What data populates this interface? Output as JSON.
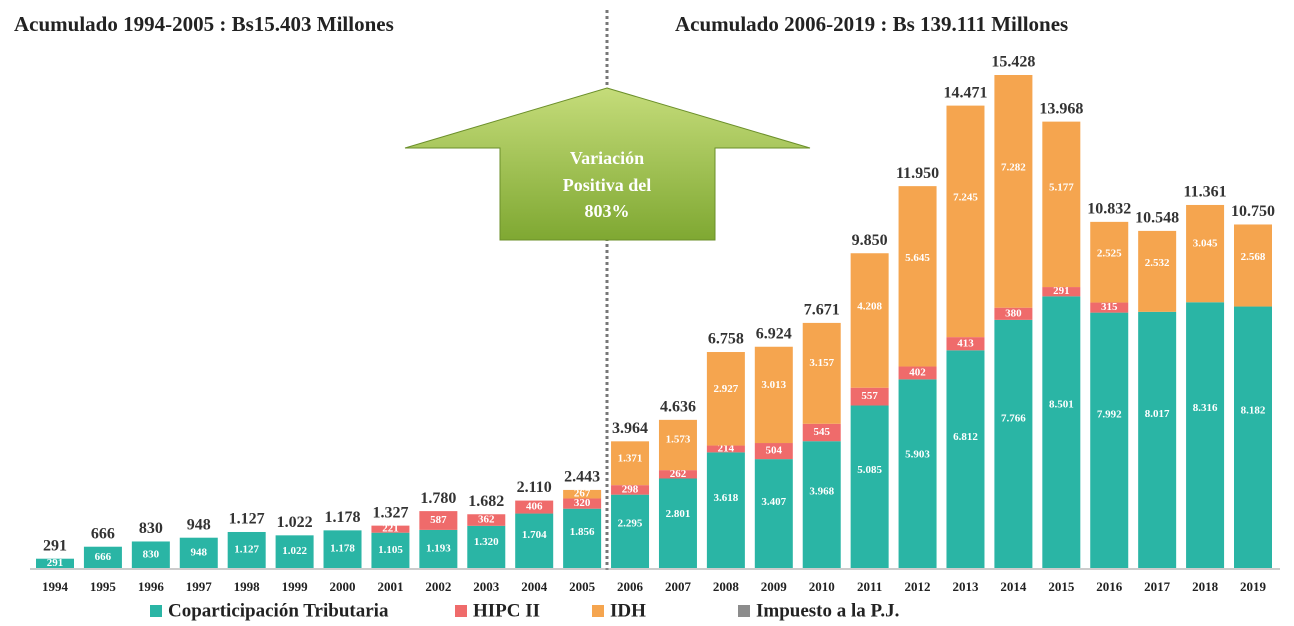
{
  "chart_data": {
    "type": "stacked_bar",
    "headers": [
      "Acumulado 1994-2005 : Bs15.403 Millones",
      "Acumulado 2006-2019 : Bs  139.111 Millones"
    ],
    "annotation": [
      "Variación",
      "Positiva del",
      "803%"
    ],
    "categories": [
      "1994",
      "1995",
      "1996",
      "1997",
      "1998",
      "1999",
      "2000",
      "2001",
      "2002",
      "2003",
      "2004",
      "2005",
      "2006",
      "2007",
      "2008",
      "2009",
      "2010",
      "2011",
      "2012",
      "2013",
      "2014",
      "2015",
      "2016",
      "2017",
      "2018",
      "2019"
    ],
    "series": [
      {
        "name": "Coparticipación Tributaria",
        "color": "#2ab5a5",
        "values": [
          291,
          666,
          830,
          948,
          1127,
          1022,
          1178,
          1105,
          1193,
          1320,
          1704,
          1856,
          2295,
          2801,
          3618,
          3407,
          3968,
          5085,
          5903,
          6812,
          7766,
          8501,
          7992,
          8017,
          8316,
          8182
        ],
        "value_labels": [
          "291",
          "666",
          "830",
          "948",
          "1.127",
          "1.022",
          "1.178",
          "1.105",
          "1.193",
          "1.320",
          "1.704",
          "1.856",
          "2.295",
          "2.801",
          "3.618",
          "3.407",
          "3.968",
          "5.085",
          "5.903",
          "6.812",
          "7.766",
          "8.501",
          "7.992",
          "8.017",
          "8.316",
          "8.182"
        ]
      },
      {
        "name": "HIPC II",
        "color": "#ef6b6b",
        "values": [
          null,
          null,
          null,
          null,
          null,
          null,
          null,
          221,
          587,
          362,
          406,
          320,
          298,
          262,
          214,
          504,
          545,
          557,
          402,
          413,
          380,
          291,
          315,
          null,
          null,
          null
        ],
        "value_labels": [
          null,
          null,
          null,
          null,
          null,
          null,
          null,
          "221",
          "587",
          "362",
          "406",
          "320",
          "298",
          "262",
          "214",
          "504",
          "545",
          "557",
          "402",
          "413",
          "380",
          "291",
          "315",
          null,
          null,
          null
        ]
      },
      {
        "name": "IDH",
        "color": "#f5a54f",
        "values": [
          null,
          null,
          null,
          null,
          null,
          null,
          null,
          null,
          null,
          null,
          null,
          267,
          1371,
          1573,
          2927,
          3013,
          3157,
          4208,
          5645,
          7245,
          7282,
          5177,
          2525,
          2532,
          3045,
          2568
        ],
        "value_labels": [
          null,
          null,
          null,
          null,
          null,
          null,
          null,
          null,
          null,
          null,
          null,
          "267",
          "1.371",
          "1.573",
          "2.927",
          "3.013",
          "3.157",
          "4.208",
          "5.645",
          "7.245",
          "7.282",
          "5.177",
          "2.525",
          "2.532",
          "3.045",
          "2.568"
        ]
      },
      {
        "name": "Impuesto a la P.J.",
        "color": "#8c8c8c",
        "values": [
          null,
          null,
          null,
          null,
          null,
          null,
          null,
          null,
          null,
          null,
          null,
          null,
          null,
          null,
          null,
          null,
          null,
          null,
          null,
          null,
          null,
          null,
          null,
          null,
          null,
          null
        ]
      }
    ],
    "totals": [
      291,
      666,
      830,
      948,
      1127,
      1022,
      1178,
      1327,
      1780,
      1682,
      2110,
      2443,
      3964,
      4636,
      6758,
      6924,
      7671,
      9850,
      11950,
      14471,
      15428,
      13968,
      10832,
      10548,
      11361,
      10750
    ],
    "total_labels": [
      "291",
      "666",
      "830",
      "948",
      "1.127",
      "1.022",
      "1.178",
      "1.327",
      "1.780",
      "1.682",
      "2.110",
      "2.443",
      "3.964",
      "4.636",
      "6.758",
      "6.924",
      "7.671",
      "9.850",
      "11.950",
      "14.471",
      "15.428",
      "13.968",
      "10.832",
      "10.548",
      "11.361",
      "10.750"
    ]
  }
}
